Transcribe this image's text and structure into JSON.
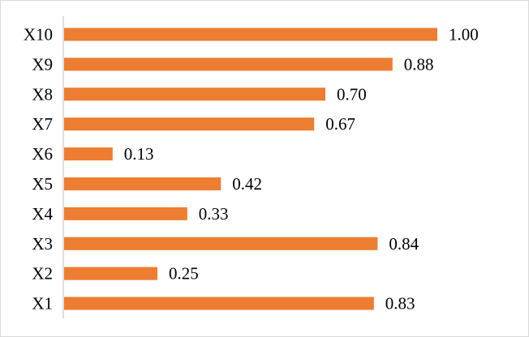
{
  "chart_data": {
    "type": "bar",
    "orientation": "horizontal",
    "categories": [
      "X10",
      "X9",
      "X8",
      "X7",
      "X6",
      "X5",
      "X4",
      "X3",
      "X2",
      "X1"
    ],
    "values": [
      1.0,
      0.88,
      0.7,
      0.67,
      0.13,
      0.42,
      0.33,
      0.84,
      0.25,
      0.83
    ],
    "value_labels": [
      "1.00",
      "0.88",
      "0.70",
      "0.67",
      "0.13",
      "0.42",
      "0.33",
      "0.84",
      "0.25",
      "0.83"
    ],
    "title": "",
    "xlabel": "",
    "ylabel": "",
    "xlim": [
      0,
      1.0
    ],
    "grid": false,
    "legend": "none",
    "colors": {
      "bar": "#ed7d31",
      "axis": "#bfbfbf",
      "text": "#000000"
    }
  }
}
